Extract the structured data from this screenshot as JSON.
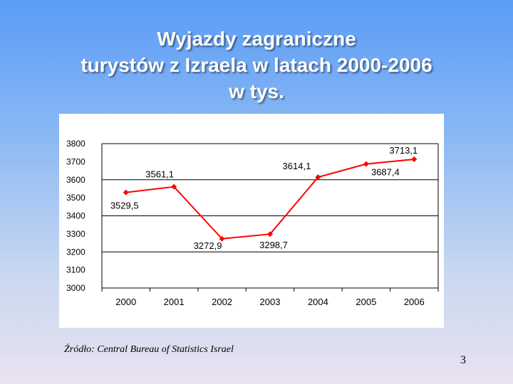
{
  "slide": {
    "title_lines": [
      "Wyjazdy zagraniczne",
      "turystów z Izraela w latach 2000-2006",
      "w tys."
    ],
    "source": "Źródło: Central Bureau of Statistics Israel",
    "page_number": "3"
  },
  "colors": {
    "series": "#ff0000",
    "gridline": "#000000",
    "text": "#000000"
  },
  "chart_data": {
    "type": "line",
    "title": "",
    "xlabel": "",
    "ylabel": "",
    "categories": [
      "2000",
      "2001",
      "2002",
      "2003",
      "2004",
      "2005",
      "2006"
    ],
    "series": [
      {
        "values": [
          3529.5,
          3561.1,
          3272.9,
          3298.7,
          3614.1,
          3687.4,
          3713.1
        ],
        "data_labels": [
          "3529,5",
          "3561,1",
          "3272,9",
          "3298,7",
          "3614,1",
          "3687,4",
          "3713,1"
        ]
      }
    ],
    "ylim": [
      3000,
      3800
    ],
    "yticks": [
      3000,
      3100,
      3200,
      3300,
      3400,
      3500,
      3600,
      3700,
      3800
    ],
    "ytick_labels": [
      "3000",
      "3100",
      "3200",
      "3300",
      "3400",
      "3500",
      "3600",
      "3700",
      "3800"
    ],
    "grid": true,
    "legend": "none"
  }
}
